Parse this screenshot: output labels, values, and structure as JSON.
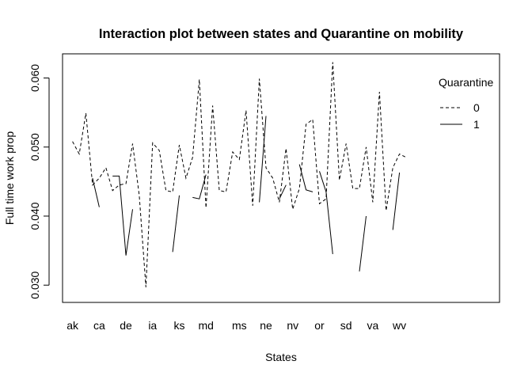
{
  "chart_data": {
    "type": "line",
    "title": "Interaction plot between states and Quarantine on mobility",
    "xlabel": "States",
    "ylabel": "Full time work prop",
    "ylim": [
      0.0275,
      0.0635
    ],
    "yticks": [
      0.03,
      0.04,
      0.05,
      0.06
    ],
    "ytick_labels": [
      "0.030",
      "0.040",
      "0.050",
      "0.060"
    ],
    "x_tick_labels": [
      {
        "label": "ak",
        "x": 1
      },
      {
        "label": "ca",
        "x": 5
      },
      {
        "label": "de",
        "x": 9
      },
      {
        "label": "ia",
        "x": 13
      },
      {
        "label": "ks",
        "x": 17
      },
      {
        "label": "md",
        "x": 21
      },
      {
        "label": "ms",
        "x": 26
      },
      {
        "label": "ne",
        "x": 30
      },
      {
        "label": "nv",
        "x": 34
      },
      {
        "label": "or",
        "x": 38
      },
      {
        "label": "sd",
        "x": 42
      },
      {
        "label": "va",
        "x": 46
      },
      {
        "label": "wv",
        "x": 50
      }
    ],
    "xlim": [
      -0.5,
      65
    ],
    "legend": {
      "title": "Quarantine",
      "position": "top-right"
    },
    "series": [
      {
        "name": "0",
        "dash": "dashed",
        "points": [
          [
            1,
            0.0508
          ],
          [
            2,
            0.049
          ],
          [
            3,
            0.0549
          ],
          [
            4,
            0.0445
          ],
          [
            5,
            0.0455
          ],
          [
            6,
            0.047
          ],
          [
            7,
            0.0437
          ],
          [
            8,
            0.0445
          ],
          [
            9,
            0.0447
          ],
          [
            10,
            0.0505
          ],
          [
            11,
            0.043
          ],
          [
            12,
            0.0297
          ],
          [
            13,
            0.0506
          ],
          [
            14,
            0.0495
          ],
          [
            15,
            0.0437
          ],
          [
            16,
            0.0435
          ],
          [
            17,
            0.0503
          ],
          [
            18,
            0.0455
          ],
          [
            19,
            0.0485
          ],
          [
            20,
            0.0598
          ],
          [
            21,
            0.0412
          ],
          [
            22,
            0.056
          ],
          [
            23,
            0.0437
          ],
          [
            24,
            0.0435
          ],
          [
            25,
            0.0493
          ],
          [
            26,
            0.0482
          ],
          [
            27,
            0.0553
          ],
          [
            28,
            0.0415
          ],
          [
            29,
            0.0599
          ],
          [
            30,
            0.047
          ],
          [
            31,
            0.0455
          ],
          [
            32,
            0.042
          ],
          [
            33,
            0.0498
          ],
          [
            34,
            0.041
          ],
          [
            35,
            0.044
          ],
          [
            36,
            0.0533
          ],
          [
            37,
            0.054
          ],
          [
            38,
            0.0418
          ],
          [
            39,
            0.0425
          ],
          [
            40,
            0.0623
          ],
          [
            41,
            0.0452
          ],
          [
            42,
            0.0505
          ],
          [
            43,
            0.044
          ],
          [
            44,
            0.044
          ],
          [
            45,
            0.05
          ],
          [
            46,
            0.042
          ],
          [
            47,
            0.058
          ],
          [
            48,
            0.0408
          ],
          [
            49,
            0.047
          ],
          [
            50,
            0.049
          ],
          [
            51,
            0.0485
          ]
        ]
      },
      {
        "name": "1",
        "dash": "solid",
        "segments": [
          [
            [
              4,
              0.0455
            ],
            [
              5,
              0.0413
            ]
          ],
          [
            [
              7,
              0.0458
            ],
            [
              8,
              0.0458
            ],
            [
              9,
              0.0343
            ],
            [
              10,
              0.041
            ]
          ],
          [
            [
              16,
              0.0348
            ],
            [
              17,
              0.043
            ]
          ],
          [
            [
              19,
              0.0427
            ],
            [
              20,
              0.0425
            ],
            [
              21,
              0.046
            ]
          ],
          [
            [
              29,
              0.042
            ],
            [
              30,
              0.0545
            ]
          ],
          [
            [
              32,
              0.0425
            ],
            [
              33,
              0.0445
            ]
          ],
          [
            [
              35,
              0.0475
            ],
            [
              36,
              0.0438
            ],
            [
              37,
              0.0435
            ]
          ],
          [
            [
              38,
              0.0465
            ],
            [
              39,
              0.0435
            ],
            [
              40,
              0.0345
            ]
          ],
          [
            [
              44,
              0.032
            ],
            [
              45,
              0.04
            ]
          ],
          [
            [
              49,
              0.038
            ],
            [
              50,
              0.0463
            ]
          ]
        ]
      }
    ]
  }
}
